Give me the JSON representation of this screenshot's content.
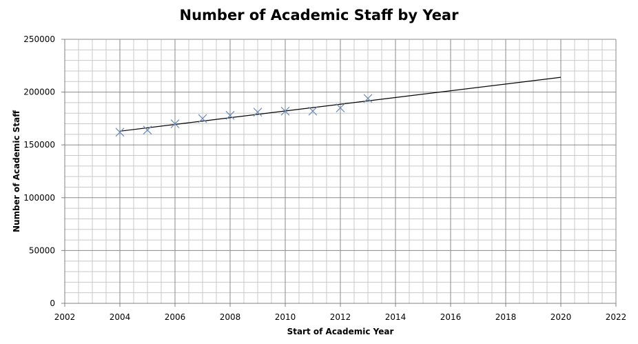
{
  "chart_data": {
    "type": "scatter",
    "title": "Number of Academic Staff by Year",
    "xlabel": "Start of Academic Year",
    "ylabel": "Number of Academic Staff",
    "xlim": [
      2002,
      2022
    ],
    "ylim": [
      0,
      250000
    ],
    "x_ticks": [
      2002,
      2004,
      2006,
      2008,
      2010,
      2012,
      2014,
      2016,
      2018,
      2020,
      2022
    ],
    "y_ticks": [
      0,
      50000,
      100000,
      150000,
      200000,
      250000
    ],
    "x_tick_labels": [
      "2002",
      "2004",
      "2006",
      "2008",
      "2010",
      "2012",
      "2014",
      "2016",
      "2018",
      "2020",
      "2022"
    ],
    "y_tick_labels": [
      "0",
      "50000",
      "100000",
      "150000",
      "200000",
      "250000"
    ],
    "grid": true,
    "legend": "none",
    "marker": "x",
    "marker_color": "#6f8fb8",
    "series": [
      {
        "x": [
          2004,
          2005,
          2006,
          2007,
          2008,
          2009,
          2010,
          2011,
          2012,
          2013
        ],
        "y": [
          162000,
          164000,
          170000,
          175000,
          178000,
          181000,
          182000,
          182000,
          185000,
          194000
        ]
      }
    ],
    "trendline": {
      "type": "linear",
      "x": [
        2004,
        2020
      ],
      "y": [
        163000,
        214000
      ],
      "color": "#000000"
    }
  }
}
